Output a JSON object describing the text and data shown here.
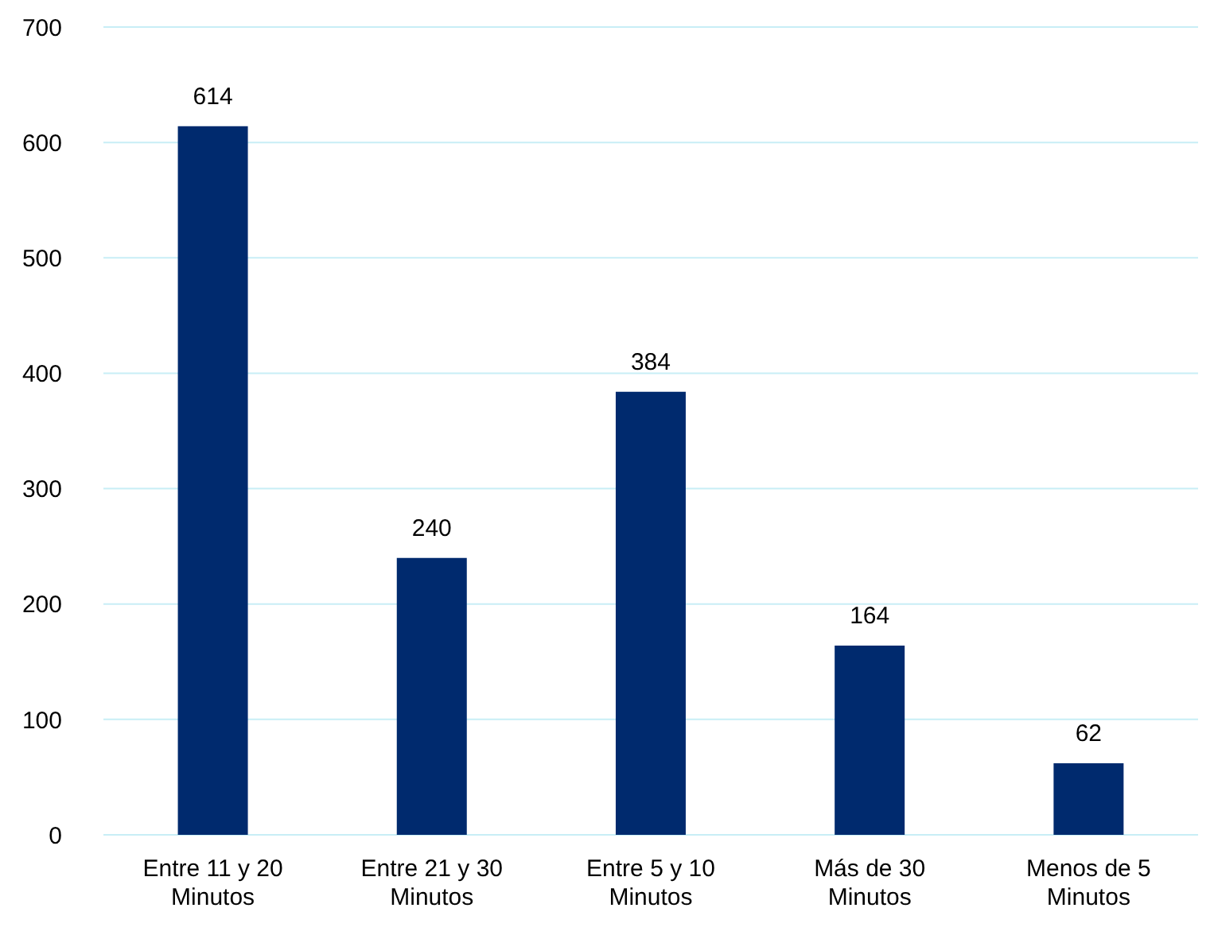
{
  "chart_data": {
    "type": "bar",
    "categories": [
      "Entre 11 y 20 Minutos",
      "Entre 21 y 30 Minutos",
      "Entre 5 y 10 Minutos",
      "Más de 30 Minutos",
      "Menos de 5 Minutos"
    ],
    "values": [
      614,
      240,
      384,
      164,
      62
    ],
    "color": "#002a6e",
    "ylim": [
      0,
      700
    ],
    "yticks": [
      0,
      100,
      200,
      300,
      400,
      500,
      600,
      700
    ],
    "grid": "y",
    "data_labels": true
  }
}
